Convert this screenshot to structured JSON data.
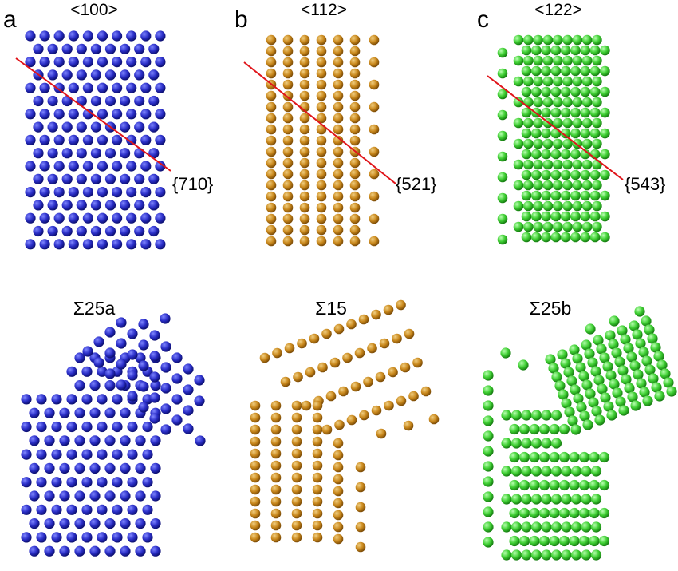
{
  "figure": {
    "panels": [
      {
        "letter": "a",
        "direction": "<100>",
        "plane": "{710}",
        "boundary": "Σ25a",
        "color_key": "blue"
      },
      {
        "letter": "b",
        "direction": "<112>",
        "plane": "{521}",
        "boundary": "Σ15",
        "color_key": "gold"
      },
      {
        "letter": "c",
        "direction": "<122>",
        "plane": "{543}",
        "boundary": "Σ25b",
        "color_key": "green"
      }
    ]
  },
  "colors": {
    "blue": {
      "light": "#7f86ff",
      "base": "#2b2fc8",
      "dark": "#0b0e6e"
    },
    "gold": {
      "light": "#f1cf82",
      "base": "#c9881c",
      "dark": "#7a4a06"
    },
    "green": {
      "light": "#b8ffb0",
      "base": "#3fcf33",
      "dark": "#157a10"
    },
    "cut_line": "#e0141a"
  }
}
